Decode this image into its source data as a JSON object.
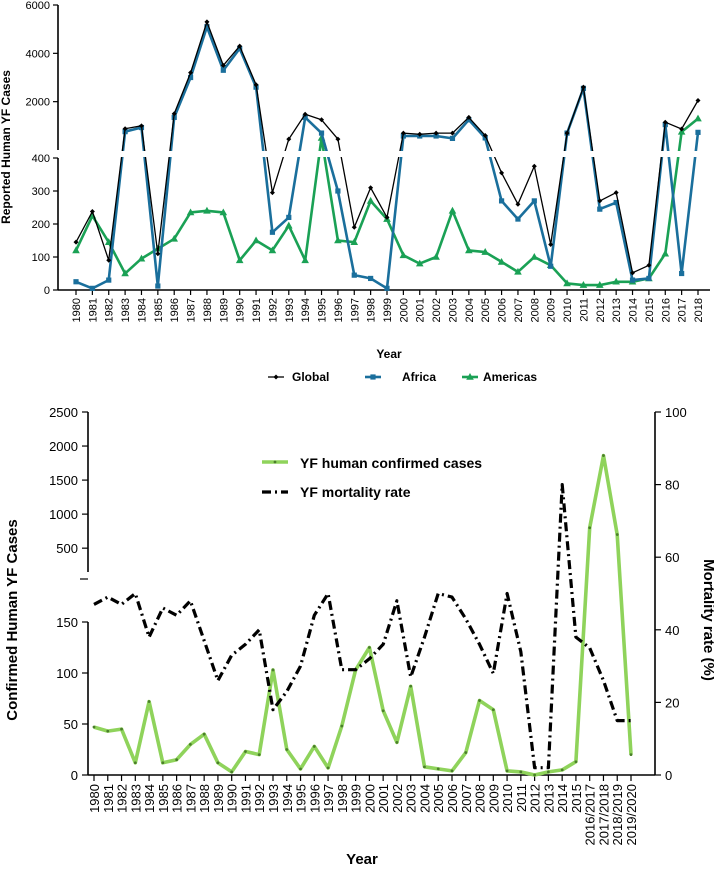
{
  "chart_data": [
    {
      "type": "line",
      "title": "",
      "xlabel": "Year",
      "ylabel": "Reported Human YF Cases",
      "x": [
        "1980",
        "1981",
        "1982",
        "1983",
        "1984",
        "1985",
        "1986",
        "1987",
        "1988",
        "1989",
        "1990",
        "1991",
        "1992",
        "1993",
        "1994",
        "1995",
        "1996",
        "1997",
        "1998",
        "1999",
        "2000",
        "2001",
        "2002",
        "2003",
        "2004",
        "2005",
        "2006",
        "2007",
        "2008",
        "2009",
        "2010",
        "2011",
        "2012",
        "2013",
        "2014",
        "2015",
        "2016",
        "2017",
        "2018"
      ],
      "y_axis": {
        "segments": [
          {
            "range": [
              0,
              400
            ],
            "ticks": [
              0,
              100,
              200,
              300,
              400
            ]
          },
          {
            "range": [
              400,
              6000
            ],
            "ticks": [
              2000,
              4000,
              6000
            ]
          }
        ]
      },
      "legend_position": "bottom",
      "series": [
        {
          "name": "Global",
          "color": "#000000",
          "marker": "diamond",
          "values": [
            145,
            238,
            90,
            880,
            1000,
            110,
            1500,
            3200,
            5300,
            3500,
            4300,
            2700,
            295,
            450,
            1480,
            1250,
            450,
            190,
            310,
            220,
            700,
            650,
            700,
            700,
            1350,
            600,
            355,
            260,
            375,
            138,
            700,
            2600,
            270,
            295,
            52,
            75,
            1150,
            870,
            2050
          ]
        },
        {
          "name": "Africa",
          "color": "#1a6f9c",
          "marker": "square",
          "values": [
            25,
            5,
            30,
            760,
            930,
            12,
            1350,
            3000,
            5100,
            3300,
            4200,
            2600,
            175,
            220,
            1350,
            700,
            300,
            45,
            35,
            5,
            580,
            580,
            580,
            480,
            1250,
            500,
            270,
            215,
            270,
            72,
            700,
            2550,
            245,
            265,
            30,
            35,
            1050,
            50,
            730
          ]
        },
        {
          "name": "Americas",
          "color": "#1aa155",
          "marker": "triangle",
          "values": [
            120,
            225,
            145,
            50,
            95,
            125,
            155,
            235,
            240,
            235,
            90,
            150,
            120,
            195,
            90,
            500,
            150,
            145,
            270,
            215,
            105,
            80,
            100,
            240,
            120,
            115,
            85,
            55,
            100,
            75,
            20,
            15,
            15,
            25,
            25,
            35,
            110,
            750,
            1300
          ]
        }
      ]
    },
    {
      "type": "line",
      "title": "",
      "xlabel": "Year",
      "ylabel": "Confirmed Human YF Cases",
      "ylabel_right": "Mortality rate (%)",
      "x": [
        "1980",
        "1981",
        "1982",
        "1983",
        "1984",
        "1985",
        "1986",
        "1987",
        "1988",
        "1989",
        "1990",
        "1991",
        "1992",
        "1993",
        "1994",
        "1995",
        "1996",
        "1997",
        "1998",
        "1999",
        "2000",
        "2001",
        "2002",
        "2003",
        "2004",
        "2005",
        "2006",
        "2007",
        "2008",
        "2009",
        "2010",
        "2011",
        "2012",
        "2013",
        "2014",
        "2015",
        "2016/2017",
        "2017/2018",
        "2018/2019",
        "2019/2020"
      ],
      "y_axis_left": {
        "segments": [
          {
            "range": [
              0,
              150
            ],
            "ticks": [
              0,
              50,
              100,
              150
            ]
          },
          {
            "range": [
              150,
              2500
            ],
            "ticks": [
              500,
              1000,
              1500,
              2000,
              2500
            ]
          }
        ]
      },
      "y_axis_right": {
        "range": [
          0,
          100
        ],
        "ticks": [
          0,
          20,
          40,
          60,
          80,
          100
        ]
      },
      "legend_position": "top-center",
      "series": [
        {
          "name": "YF human confirmed cases",
          "axis": "left",
          "color": "#8fd35b",
          "values": [
            47,
            43,
            45,
            12,
            72,
            12,
            15,
            30,
            40,
            12,
            3,
            23,
            20,
            103,
            25,
            6,
            28,
            7,
            48,
            103,
            125,
            63,
            32,
            87,
            8,
            6,
            4,
            22,
            73,
            64,
            4,
            3,
            0,
            3,
            5,
            13,
            800,
            1860,
            700,
            20
          ]
        },
        {
          "name": "YF mortality rate",
          "axis": "right",
          "color": "#000000",
          "dash": "dash-dot",
          "values": [
            47,
            49,
            47,
            50,
            38,
            46,
            44,
            48,
            37,
            26,
            33,
            36,
            40,
            18,
            23,
            30,
            44,
            50,
            29,
            29,
            32,
            36,
            48,
            27,
            38,
            50,
            49,
            43,
            36,
            28,
            50,
            34,
            2,
            2,
            80,
            38,
            35,
            26,
            15,
            15
          ]
        }
      ]
    }
  ]
}
